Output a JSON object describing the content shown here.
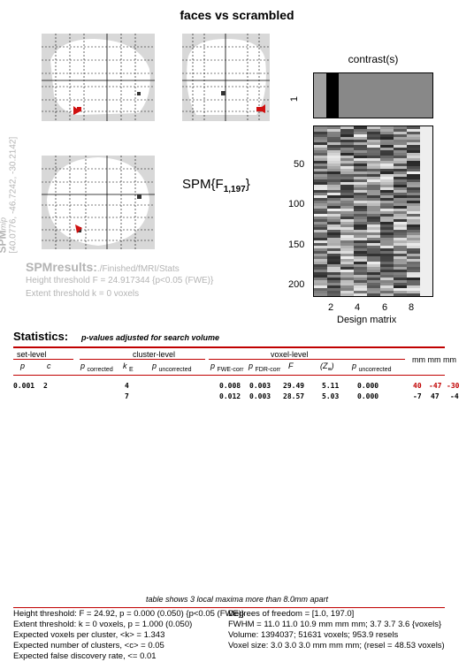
{
  "title": "faces vs scrambled",
  "spm_map_label": {
    "prefix": "SPM",
    "suffix": "mip",
    "coords": "[40.0776, -46.7242, -30.2142]"
  },
  "statistic": {
    "main": "SPM{F",
    "sub": "1,197",
    "close": "}"
  },
  "results": {
    "label": "SPMresults:",
    "path": "./Finished/fMRI/Stats",
    "height_threshold": "Height threshold F = 24.917344  {p<0.05 (FWE)}",
    "extent_threshold": "Extent threshold k = 0 voxels"
  },
  "contrast": {
    "title": "contrast(s)",
    "row_label": "1",
    "weights": [
      0,
      1,
      0,
      0,
      0,
      0,
      0,
      0,
      0
    ]
  },
  "design_matrix": {
    "xlabel": "Design matrix",
    "y_ticks": [
      "50",
      "100",
      "150",
      "200"
    ],
    "x_ticks": [
      "2",
      "4",
      "6",
      "8"
    ]
  },
  "stats_table": {
    "title": "Statistics:",
    "subtitle": "p-values adjusted for search volume",
    "group_headers": {
      "set": "set-level",
      "cluster": "cluster-level",
      "voxel": "voxel-level",
      "coords": "mm mm mm"
    },
    "columns": {
      "set_p": "p",
      "set_c": "c",
      "cl_p": "p",
      "cl_p_sub": "corrected",
      "cl_k": "k",
      "cl_k_sub": "E",
      "cl_pu": "p",
      "cl_pu_sub": "uncorrected",
      "vx_fwe": "p",
      "vx_fwe_sub": "FWE-corr",
      "vx_fdr": "p",
      "vx_fdr_sub": "FDR-corr",
      "vx_f": "F",
      "vx_z": "(Z",
      "vx_z_sub": "≡",
      "vx_z_close": ")",
      "vx_pu": "p",
      "vx_pu_sub": "uncorrected"
    },
    "rows": [
      {
        "set_p": "0.001",
        "set_c": "2",
        "cl_k": "4",
        "fwe": "0.008",
        "fdr": "0.003",
        "f": "29.49",
        "z": "5.11",
        "pu": "0.000",
        "x": "40",
        "y": "-47",
        "z_mm": "-30",
        "highlight": true
      },
      {
        "set_p": "",
        "set_c": "",
        "cl_k": "7",
        "fwe": "0.012",
        "fdr": "0.003",
        "f": "28.57",
        "z": "5.03",
        "pu": "0.000",
        "x": "-7",
        "y": "47",
        "z_mm": "-4",
        "highlight": false
      }
    ],
    "footnote": "table shows 3 local maxima more than 8.0mm apart"
  },
  "footer": {
    "left": [
      "Height threshold: F = 24.92, p = 0.000 (0.050) {p<0.05 (FWE)}",
      "Extent threshold: k = 0 voxels, p = 1.000 (0.050)",
      "Expected voxels per cluster, <k> = 1.343",
      "Expected number of clusters, <c> = 0.05",
      "Expected false discovery rate, <= 0.01"
    ],
    "right": [
      "Degrees of freedom = [1.0, 197.0]",
      "FWHM = 11.0 11.0 10.9 mm mm mm; 3.7 3.7 3.6 {voxels}",
      "Volume: 1394037; 51631 voxels; 953.9 resels",
      "Voxel size: 3.0 3.0 3.0 mm mm mm; (resel = 48.53 voxels)"
    ]
  },
  "colors": {
    "accent_red": "#c00000",
    "grey_label": "#b4b4b4",
    "mip_bg": "#d8d8d8",
    "blob": "#d01010"
  }
}
